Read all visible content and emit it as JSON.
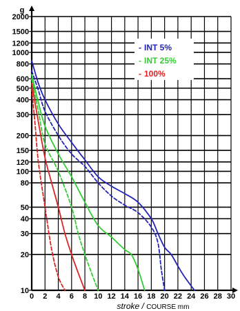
{
  "chart_data": {
    "type": "line",
    "title": "",
    "ylabel": "g",
    "xlabel": {
      "main": "stroke",
      "separator": " / ",
      "sub": "COURSE mm"
    },
    "yscale": "log",
    "ylim": [
      10,
      2000
    ],
    "xlim": [
      0,
      30
    ],
    "yticks": [
      10,
      20,
      30,
      40,
      50,
      80,
      100,
      120,
      150,
      200,
      300,
      400,
      500,
      600,
      800,
      1000,
      1200,
      1500,
      2000
    ],
    "xticks": [
      0,
      2,
      4,
      6,
      8,
      10,
      12,
      14,
      16,
      18,
      20,
      22,
      24,
      26,
      28,
      30
    ],
    "grid": true,
    "legend_position": "top-right",
    "legend": [
      {
        "label": "INT 5%",
        "prefix": "-",
        "color": "#2222bb"
      },
      {
        "label": "INT 25%",
        "prefix": "-",
        "color": "#33cc33"
      },
      {
        "label": "100%",
        "prefix": "-",
        "color": "#dd2222"
      }
    ],
    "series": [
      {
        "group": "INT 5%",
        "line": "solid",
        "color": "#2222bb",
        "points": [
          [
            0,
            850
          ],
          [
            1,
            550
          ],
          [
            2,
            400
          ],
          [
            4,
            250
          ],
          [
            6,
            175
          ],
          [
            8,
            125
          ],
          [
            10,
            90
          ],
          [
            12,
            75
          ],
          [
            14,
            65
          ],
          [
            16,
            55
          ],
          [
            18,
            40
          ],
          [
            19,
            30
          ],
          [
            20,
            23
          ],
          [
            21,
            20
          ],
          [
            22,
            16
          ],
          [
            23,
            13
          ],
          [
            24.5,
            10
          ]
        ]
      },
      {
        "group": "INT 5%",
        "line": "dashed",
        "color": "#2222bb",
        "points": [
          [
            0,
            700
          ],
          [
            1,
            480
          ],
          [
            2,
            320
          ],
          [
            4,
            200
          ],
          [
            6,
            140
          ],
          [
            8,
            110
          ],
          [
            10,
            80
          ],
          [
            12,
            62
          ],
          [
            14,
            52
          ],
          [
            16,
            45
          ],
          [
            18,
            34
          ],
          [
            19,
            25
          ],
          [
            19.5,
            15
          ],
          [
            20,
            10
          ]
        ]
      },
      {
        "group": "INT 25%",
        "line": "solid",
        "color": "#33cc33",
        "points": [
          [
            0,
            650
          ],
          [
            1,
            380
          ],
          [
            2,
            240
          ],
          [
            4,
            140
          ],
          [
            6,
            90
          ],
          [
            8,
            55
          ],
          [
            10,
            35
          ],
          [
            12,
            28
          ],
          [
            14,
            22
          ],
          [
            15,
            20
          ],
          [
            16,
            15
          ],
          [
            17,
            10
          ]
        ]
      },
      {
        "group": "INT 25%",
        "line": "dashed",
        "color": "#33cc33",
        "points": [
          [
            0,
            600
          ],
          [
            1,
            320
          ],
          [
            2,
            170
          ],
          [
            4,
            100
          ],
          [
            6,
            50
          ],
          [
            7,
            30
          ],
          [
            8,
            20
          ],
          [
            9,
            14
          ],
          [
            10,
            10
          ]
        ]
      },
      {
        "group": "100%",
        "line": "solid",
        "color": "#dd2222",
        "points": [
          [
            0,
            550
          ],
          [
            1,
            260
          ],
          [
            2,
            130
          ],
          [
            3,
            80
          ],
          [
            4,
            50
          ],
          [
            5,
            30
          ],
          [
            6,
            20
          ],
          [
            7,
            14
          ],
          [
            8,
            10
          ]
        ]
      },
      {
        "group": "100%",
        "line": "dashed",
        "color": "#dd2222",
        "points": [
          [
            0,
            500
          ],
          [
            0.5,
            250
          ],
          [
            1,
            120
          ],
          [
            2,
            50
          ],
          [
            3,
            22
          ],
          [
            4,
            13
          ],
          [
            5,
            10
          ]
        ]
      }
    ]
  }
}
